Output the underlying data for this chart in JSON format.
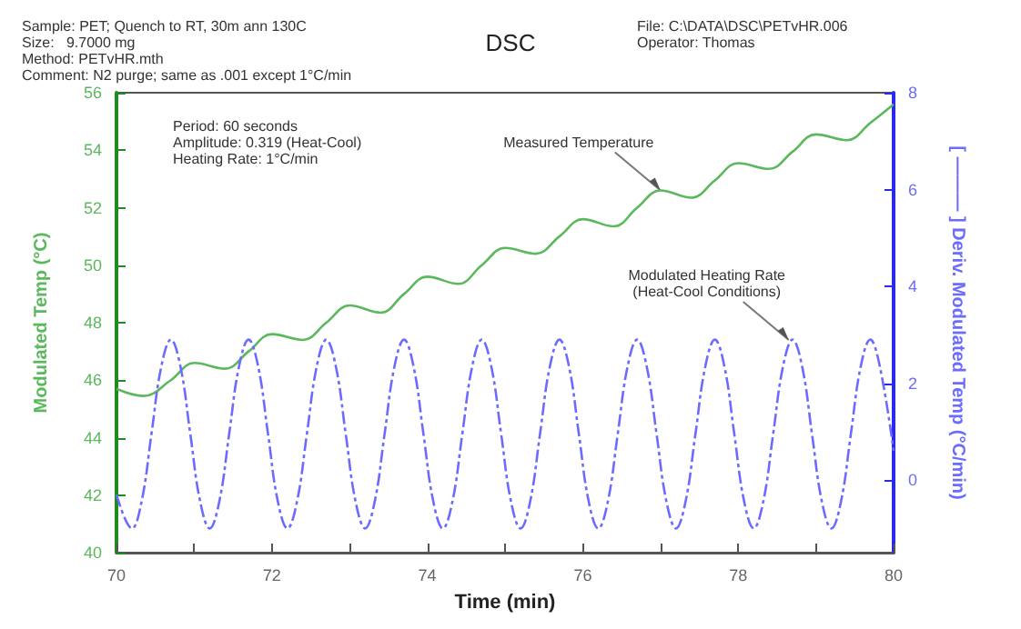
{
  "chart_data": {
    "type": "line",
    "title": "DSC",
    "annotations": [
      "Sample: PET; Quench to RT, 30m ann 130C\nSize:   9.7000 mg\nMethod: PETvHR.mth\nComment: N2 purge; same as .001 except 1°C/min",
      "File: C:\\DATA\\DSC\\PETvHR.006\nOperator: Thomas",
      "Period: 60 seconds\nAmplitude: 0.319 (Heat-Cool)\nHeating Rate: 1°C/min",
      {
        "text": "Measured Temperature",
        "x": 77.0,
        "y": 52.6
      },
      {
        "text": "Modulated Heating Rate\n(Heat-Cool Conditions)",
        "x": 78.65,
        "y": 47.4
      }
    ],
    "xlabel": "Time (min)",
    "ylabel": "Modulated Temp (°C)",
    "y2label": "[ ——— ] Deriv. Modulated Temp (°C/min)",
    "xlim": [
      70,
      80
    ],
    "xticks": [
      70,
      {
        "value": 71,
        "label": null
      },
      72,
      {
        "value": 73,
        "label": null
      },
      74,
      {
        "value": 75,
        "label": null
      },
      76,
      {
        "value": 77,
        "label": null
      },
      78,
      {
        "value": 79,
        "label": null
      },
      80
    ],
    "ylim": [
      40,
      56
    ],
    "yticks": [
      40,
      42,
      44,
      46,
      48,
      50,
      52,
      54,
      56
    ],
    "y2lim": [
      -1.5,
      8
    ],
    "y2ticks": [
      0,
      2,
      4,
      6,
      8
    ],
    "grid": false,
    "marker": "none",
    "series": [
      {
        "color": "#5cb85c",
        "line_style": "solid",
        "x": [
          70,
          70.35,
          70.7,
          71.0,
          71.4,
          71.7,
          72.0,
          72.4,
          72.7,
          73.0,
          73.4,
          73.7,
          74.0,
          74.4,
          74.7,
          75.0,
          75.4,
          75.7,
          76.0,
          76.4,
          76.7,
          77.0,
          77.4,
          77.7,
          78.0,
          78.4,
          78.7,
          79.0,
          79.4,
          79.7,
          80
        ],
        "values": [
          45.7,
          45.45,
          46.0,
          46.6,
          46.4,
          47.0,
          47.6,
          47.4,
          48.0,
          48.6,
          48.35,
          49.0,
          49.6,
          49.35,
          50.0,
          50.6,
          50.4,
          51.0,
          51.6,
          51.35,
          52.0,
          52.6,
          52.35,
          52.95,
          53.55,
          53.35,
          53.95,
          54.55,
          54.35,
          54.95,
          55.6
        ]
      },
      {
        "color": "#6b6bff",
        "line_style": "dashed",
        "axis": "y2",
        "x": [
          70,
          70.2,
          70.325,
          70.45,
          70.575,
          70.7,
          70.825,
          70.95,
          71.075,
          71.2,
          71.325,
          71.45,
          71.575,
          71.7,
          71.825,
          71.95,
          72.075,
          72.2,
          72.325,
          72.45,
          72.575,
          72.7,
          72.825,
          72.95,
          73.075,
          73.2,
          73.325,
          73.45,
          73.575,
          73.7,
          73.825,
          73.95,
          74.075,
          74.2,
          74.325,
          74.45,
          74.575,
          74.7,
          74.825,
          74.95,
          75.075,
          75.2,
          75.325,
          75.45,
          75.575,
          75.7,
          75.825,
          75.95,
          76.075,
          76.2,
          76.325,
          76.45,
          76.575,
          76.7,
          76.825,
          76.95,
          77.075,
          77.2,
          77.325,
          77.45,
          77.575,
          77.7,
          77.825,
          77.95,
          78.075,
          78.2,
          78.325,
          78.45,
          78.575,
          78.7,
          78.825,
          78.95,
          79.075,
          79.2,
          79.325,
          79.45,
          79.575,
          79.7,
          79.825,
          80
        ],
        "values": [
          -0.3,
          -1.0,
          -0.43,
          0.95,
          2.33,
          2.9,
          2.33,
          0.95,
          -0.43,
          -1.0,
          -0.43,
          0.95,
          2.33,
          2.9,
          2.33,
          0.95,
          -0.43,
          -1.0,
          -0.43,
          0.95,
          2.33,
          2.9,
          2.33,
          0.95,
          -0.43,
          -1.0,
          -0.43,
          0.95,
          2.33,
          2.9,
          2.33,
          0.95,
          -0.43,
          -1.0,
          -0.43,
          0.95,
          2.33,
          2.9,
          2.33,
          0.95,
          -0.43,
          -1.0,
          -0.43,
          0.95,
          2.33,
          2.9,
          2.33,
          0.95,
          -0.43,
          -1.0,
          -0.43,
          0.95,
          2.33,
          2.9,
          2.33,
          0.95,
          -0.43,
          -1.0,
          -0.43,
          0.95,
          2.33,
          2.9,
          2.33,
          0.95,
          -0.43,
          -1.0,
          -0.43,
          0.95,
          2.33,
          2.9,
          2.33,
          0.95,
          -0.43,
          -1.0,
          -0.43,
          0.95,
          2.33,
          2.9,
          2.33,
          0.6
        ]
      }
    ]
  }
}
